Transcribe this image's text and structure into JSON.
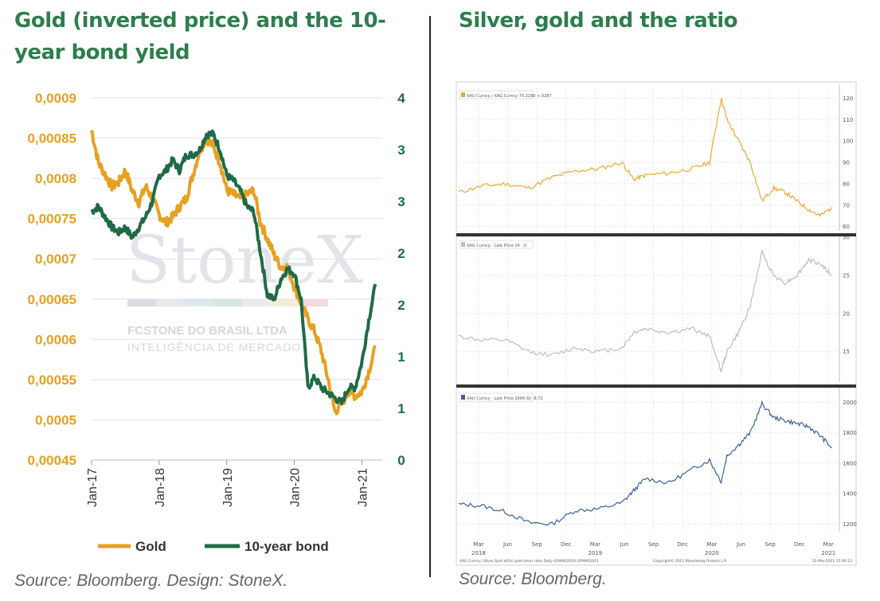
{
  "left_panel": {
    "title": "Gold (inverted price) and the 10-year bond yield",
    "source": "Source: Bloomberg. Design: StoneX.",
    "watermark": {
      "brand": "StoneX",
      "line1": "FCSTONE DO BRASIL LTDA",
      "line2": "INTELIGÊNCIA DE MERCADO"
    }
  },
  "right_panel": {
    "title": "Silver, gold and the ratio",
    "source": "Source: Bloomberg."
  },
  "chart_data": [
    {
      "type": "line",
      "x_ticks": [
        "Jan-17",
        "Jan-18",
        "Jan-19",
        "Jan-20",
        "Jan-21"
      ],
      "y_left_ticks": [
        "0,0009",
        "0,00085",
        "0,0008",
        "0,00075",
        "0,0007",
        "0,00065",
        "0,0006",
        "0,00055",
        "0,0005",
        "0,00045"
      ],
      "y_right_ticks": [
        "4",
        "3",
        "3",
        "2",
        "2",
        "1",
        "1",
        "0"
      ],
      "ylim_left": [
        0.00045,
        0.0009
      ],
      "ylim_right": [
        0,
        3.5
      ],
      "legend_position": "bottom",
      "colors": {
        "gold": "#e8a023",
        "bond": "#1f6b45",
        "left_axis": "#e8a023",
        "right_axis": "#1f6b45"
      },
      "series": [
        {
          "name": "Gold",
          "axis": "left",
          "x": [
            2017.0,
            2017.1,
            2017.2,
            2017.3,
            2017.4,
            2017.5,
            2017.6,
            2017.7,
            2017.8,
            2017.9,
            2018.0,
            2018.1,
            2018.2,
            2018.3,
            2018.4,
            2018.5,
            2018.6,
            2018.7,
            2018.8,
            2018.9,
            2019.0,
            2019.1,
            2019.2,
            2019.3,
            2019.4,
            2019.5,
            2019.6,
            2019.7,
            2019.8,
            2019.9,
            2020.0,
            2020.1,
            2020.2,
            2020.3,
            2020.4,
            2020.5,
            2020.6,
            2020.7,
            2020.8,
            2020.9,
            2021.0,
            2021.1,
            2021.2
          ],
          "y": [
            0.00086,
            0.00082,
            0.000805,
            0.00079,
            0.000795,
            0.00081,
            0.000785,
            0.00077,
            0.00079,
            0.000775,
            0.000755,
            0.000745,
            0.000752,
            0.000765,
            0.000775,
            0.000805,
            0.000835,
            0.00085,
            0.00084,
            0.00082,
            0.000785,
            0.00078,
            0.000775,
            0.00078,
            0.000785,
            0.000745,
            0.000725,
            0.000705,
            0.00069,
            0.00069,
            0.000665,
            0.000645,
            0.000625,
            0.00061,
            0.000585,
            0.00055,
            0.00051,
            0.00052,
            0.000535,
            0.00053,
            0.000535,
            0.00056,
            0.00059
          ]
        },
        {
          "name": "10-year bond",
          "axis": "right",
          "x": [
            2017.0,
            2017.1,
            2017.2,
            2017.3,
            2017.4,
            2017.5,
            2017.6,
            2017.7,
            2017.8,
            2017.9,
            2018.0,
            2018.1,
            2018.2,
            2018.3,
            2018.4,
            2018.5,
            2018.6,
            2018.7,
            2018.8,
            2018.9,
            2019.0,
            2019.1,
            2019.2,
            2019.3,
            2019.4,
            2019.5,
            2019.6,
            2019.7,
            2019.8,
            2019.9,
            2020.0,
            2020.1,
            2020.2,
            2020.3,
            2020.4,
            2020.5,
            2020.6,
            2020.7,
            2020.8,
            2020.9,
            2021.0,
            2021.1,
            2021.2
          ],
          "y": [
            2.4,
            2.45,
            2.35,
            2.25,
            2.2,
            2.25,
            2.15,
            2.25,
            2.35,
            2.5,
            2.75,
            2.8,
            2.9,
            2.8,
            2.95,
            2.95,
            3.0,
            3.15,
            3.15,
            3.0,
            2.75,
            2.7,
            2.6,
            2.45,
            2.4,
            2.0,
            1.6,
            1.55,
            1.75,
            1.85,
            1.8,
            1.55,
            0.7,
            0.8,
            0.7,
            0.65,
            0.6,
            0.55,
            0.7,
            0.7,
            0.95,
            1.35,
            1.7
          ]
        }
      ]
    },
    {
      "type": "line",
      "title": "",
      "panels": [
        {
          "legend": "XAU Curncy / XAG Curncy  70.2290  +.0287",
          "y_ticks": [
            "120",
            "110",
            "100",
            "90",
            "80",
            "70",
            "60"
          ],
          "ylim": [
            58,
            125
          ],
          "color": "#f0a830",
          "x": [
            2018.0,
            2018.2,
            2018.4,
            2018.6,
            2018.8,
            2019.0,
            2019.2,
            2019.4,
            2019.5,
            2019.6,
            2019.8,
            2020.0,
            2020.15,
            2020.25,
            2020.3,
            2020.4,
            2020.5,
            2020.6,
            2020.7,
            2020.8,
            2020.9,
            2021.0,
            2021.1,
            2021.2
          ],
          "y": [
            76,
            79,
            80,
            78,
            83,
            86,
            87,
            90,
            82,
            84,
            85,
            87,
            90,
            120,
            110,
            100,
            90,
            72,
            78,
            76,
            72,
            68,
            65,
            69
          ]
        },
        {
          "legend": "XAG Curncy - Last Price  24  -.0",
          "y_ticks": [
            "30",
            "25",
            "20",
            "15"
          ],
          "ylim": [
            11,
            30
          ],
          "color": "#bdbdbd",
          "x": [
            2018.0,
            2018.2,
            2018.4,
            2018.6,
            2018.8,
            2019.0,
            2019.2,
            2019.4,
            2019.5,
            2019.6,
            2019.8,
            2020.0,
            2020.15,
            2020.25,
            2020.3,
            2020.4,
            2020.5,
            2020.6,
            2020.7,
            2020.8,
            2020.9,
            2021.0,
            2021.1,
            2021.2
          ],
          "y": [
            17,
            16.5,
            16.5,
            15,
            14.5,
            15.5,
            15,
            15.5,
            17.5,
            18,
            17.5,
            18,
            17,
            12.5,
            15,
            17.5,
            21,
            28,
            25,
            24,
            25,
            27,
            26.5,
            25
          ]
        },
        {
          "legend": "XAU Curncy - Last Price  1694.92  -8.72",
          "y_ticks": [
            "2000",
            "1800",
            "1600",
            "1400",
            "1200"
          ],
          "ylim": [
            1150,
            2080
          ],
          "color": "#3a5fa0",
          "x": [
            2018.0,
            2018.2,
            2018.4,
            2018.6,
            2018.8,
            2019.0,
            2019.2,
            2019.4,
            2019.5,
            2019.6,
            2019.8,
            2020.0,
            2020.15,
            2020.25,
            2020.3,
            2020.4,
            2020.5,
            2020.6,
            2020.7,
            2020.8,
            2020.9,
            2021.0,
            2021.1,
            2021.2
          ],
          "y": [
            1330,
            1320,
            1280,
            1210,
            1200,
            1290,
            1300,
            1340,
            1420,
            1500,
            1470,
            1560,
            1620,
            1480,
            1650,
            1720,
            1800,
            1990,
            1900,
            1880,
            1860,
            1840,
            1780,
            1700
          ]
        }
      ],
      "x_ticks": [
        "Mar",
        "Jun",
        "Sep",
        "Dec",
        "Mar",
        "Jun",
        "Sep",
        "Dec",
        "Mar",
        "Jun",
        "Sep",
        "Dec",
        "Mar"
      ],
      "x_years": [
        "2018",
        "2019",
        "2020",
        "2021"
      ],
      "footer_left": "XAG Curncy (Silver Spot $/Oz) gold silver ratio  Daily 01MAR2018-31MAR2021",
      "footer_mid": "Copyright© 2021 Bloomberg Finance L.P.",
      "footer_right": "31-Mar-2021 15:00:13"
    }
  ]
}
